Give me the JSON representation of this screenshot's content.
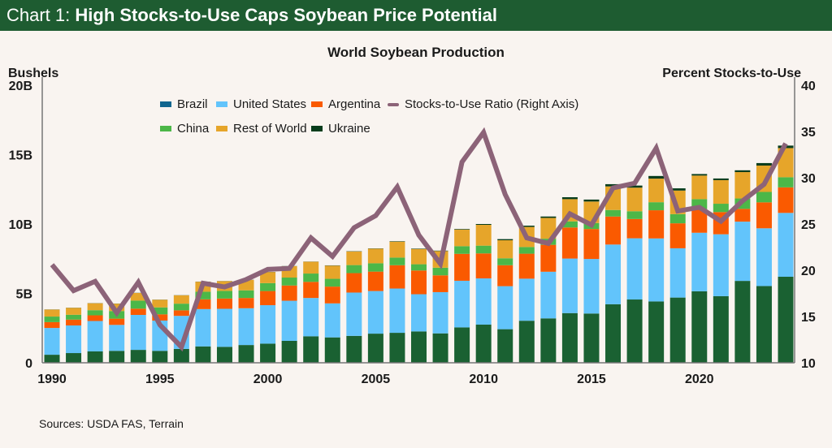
{
  "header": {
    "prefix": "Chart 1:",
    "title": "High Stocks-to-Use Caps Soybean Price Potential"
  },
  "source": "Sources: USDA FAS, Terrain",
  "chart_data": {
    "type": "bar",
    "stacked": true,
    "title": "World Soybean Production",
    "ylabel": "Bushels",
    "y2label": "Percent Stocks-to-Use",
    "ylim": [
      0,
      20
    ],
    "y_ticks": [
      "0",
      "5B",
      "10B",
      "15B",
      "20B"
    ],
    "y2lim": [
      10,
      40
    ],
    "y2_ticks": [
      "10",
      "15",
      "20",
      "25",
      "30",
      "35",
      "40"
    ],
    "x_ticks": [
      "1990",
      "1995",
      "2000",
      "2005",
      "2010",
      "2015",
      "2020"
    ],
    "grid": false,
    "legend_position": "top",
    "categories": [
      1990,
      1991,
      1992,
      1993,
      1994,
      1995,
      1996,
      1997,
      1998,
      1999,
      2000,
      2001,
      2002,
      2003,
      2004,
      2005,
      2006,
      2007,
      2008,
      2009,
      2010,
      2011,
      2012,
      2013,
      2014,
      2015,
      2016,
      2017,
      2018,
      2019,
      2020,
      2021,
      2022,
      2023,
      2024
    ],
    "series": [
      {
        "name": "Brazil",
        "color": "#1a6132",
        "legend_color": "#11668f",
        "values": [
          0.58,
          0.7,
          0.82,
          0.86,
          0.93,
          0.86,
          1.0,
          1.18,
          1.15,
          1.28,
          1.38,
          1.58,
          1.91,
          1.83,
          1.94,
          2.1,
          2.16,
          2.26,
          2.12,
          2.55,
          2.75,
          2.42,
          3.03,
          3.2,
          3.58,
          3.55,
          4.22,
          4.56,
          4.42,
          4.7,
          5.15,
          4.8,
          5.9,
          5.53,
          6.2
        ]
      },
      {
        "name": "United States",
        "color": "#62c4fb",
        "values": [
          1.93,
          1.99,
          2.19,
          1.87,
          2.52,
          2.18,
          2.38,
          2.69,
          2.74,
          2.65,
          2.77,
          2.89,
          2.76,
          2.45,
          3.12,
          3.07,
          3.19,
          2.68,
          2.97,
          3.36,
          3.33,
          3.1,
          3.03,
          3.36,
          3.93,
          3.93,
          4.3,
          4.41,
          4.54,
          3.55,
          4.22,
          4.46,
          4.27,
          4.16,
          4.6
        ]
      },
      {
        "name": "Argentina",
        "color": "#fa5a00",
        "values": [
          0.42,
          0.42,
          0.41,
          0.45,
          0.45,
          0.45,
          0.4,
          0.7,
          0.74,
          0.74,
          1.02,
          1.1,
          1.16,
          1.21,
          1.4,
          1.4,
          1.68,
          1.71,
          1.21,
          1.94,
          1.8,
          1.51,
          1.8,
          1.94,
          2.24,
          2.16,
          2.02,
          1.39,
          2.03,
          1.8,
          1.7,
          1.6,
          0.92,
          1.87,
          1.84
        ]
      },
      {
        "name": "China",
        "color": "#4cb748",
        "values": [
          0.4,
          0.35,
          0.37,
          0.55,
          0.58,
          0.5,
          0.48,
          0.55,
          0.55,
          0.55,
          0.57,
          0.57,
          0.6,
          0.56,
          0.58,
          0.6,
          0.55,
          0.45,
          0.55,
          0.55,
          0.56,
          0.5,
          0.48,
          0.44,
          0.44,
          0.43,
          0.47,
          0.56,
          0.58,
          0.66,
          0.72,
          0.6,
          0.75,
          0.75,
          0.73
        ]
      },
      {
        "name": "Rest of World",
        "color": "#e6a52a",
        "values": [
          0.5,
          0.5,
          0.5,
          0.53,
          0.55,
          0.55,
          0.6,
          0.72,
          0.7,
          0.75,
          0.8,
          0.82,
          0.85,
          0.95,
          0.98,
          1.05,
          1.15,
          1.1,
          1.2,
          1.2,
          1.5,
          1.3,
          1.45,
          1.5,
          1.6,
          1.55,
          1.7,
          1.7,
          1.7,
          1.7,
          1.7,
          1.7,
          1.9,
          1.9,
          2.1
        ]
      },
      {
        "name": "Ukraine",
        "color": "#083d1c",
        "values": [
          0.01,
          0.01,
          0.01,
          0.01,
          0.01,
          0.01,
          0.01,
          0.01,
          0.01,
          0.01,
          0.01,
          0.01,
          0.01,
          0.02,
          0.02,
          0.02,
          0.03,
          0.03,
          0.03,
          0.04,
          0.06,
          0.08,
          0.09,
          0.1,
          0.14,
          0.14,
          0.16,
          0.15,
          0.19,
          0.16,
          0.11,
          0.12,
          0.13,
          0.18,
          0.18
        ]
      }
    ],
    "line_series": {
      "name": "Stocks-to-Use Ratio (Right Axis)",
      "color": "#8c6378",
      "axis": "right",
      "values": [
        20.6,
        17.8,
        18.8,
        15.4,
        18.7,
        14.1,
        11.7,
        18.6,
        18.2,
        19.0,
        20.1,
        20.2,
        23.5,
        21.5,
        24.6,
        25.9,
        29.0,
        23.8,
        20.7,
        31.7,
        34.9,
        28.2,
        23.5,
        22.9,
        26.1,
        24.9,
        28.9,
        29.4,
        33.2,
        26.4,
        26.8,
        25.3,
        27.5,
        29.3,
        33.7
      ]
    }
  }
}
